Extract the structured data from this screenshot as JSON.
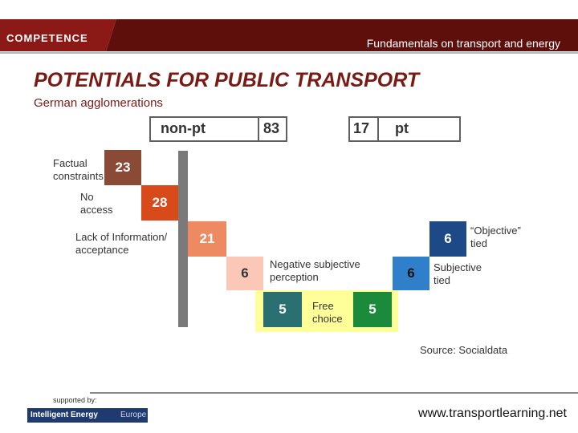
{
  "header": {
    "brand": "COMPETENCE",
    "title": "Fundamentals on transport and energy"
  },
  "page": {
    "title": "POTENTIALS FOR PUBLIC TRANSPORT",
    "subtitle": "German agglomerations"
  },
  "totals": {
    "non_pt_label": "non-pt",
    "non_pt_value": "83",
    "pt_value": "17",
    "pt_label": "pt"
  },
  "steps": {
    "factual": {
      "label": "Factual constraints",
      "value": "23",
      "color": "#8a4a36"
    },
    "no_access": {
      "label1": "No",
      "label2": "access",
      "value": "28",
      "color": "#d94a1a"
    },
    "info": {
      "label1": "Lack of Information/",
      "label2": "acceptance",
      "value": "21",
      "color": "#ee8a62"
    },
    "neg_perception": {
      "label1": "Negative subjective",
      "label2": "perception",
      "value": "6",
      "color": "#fbc8b8"
    },
    "free_left": {
      "value": "5",
      "color": "#2b7070"
    },
    "free_choice": {
      "label1": "Free",
      "label2": "choice"
    },
    "free_right": {
      "value": "5",
      "color": "#1b8a3a"
    },
    "subjective": {
      "label1": "Subjective",
      "label2": "tied",
      "value": "6",
      "color": "#2f7fca"
    },
    "objective": {
      "label1": "“Objective”",
      "label2": "tied",
      "value": "6",
      "color": "#1d4a86"
    }
  },
  "source": "Source: Socialdata",
  "footer": {
    "supported": "supported by:",
    "logo": "Intelligent Energy",
    "logo2": "Europe",
    "url": "www.transportlearning.net"
  }
}
